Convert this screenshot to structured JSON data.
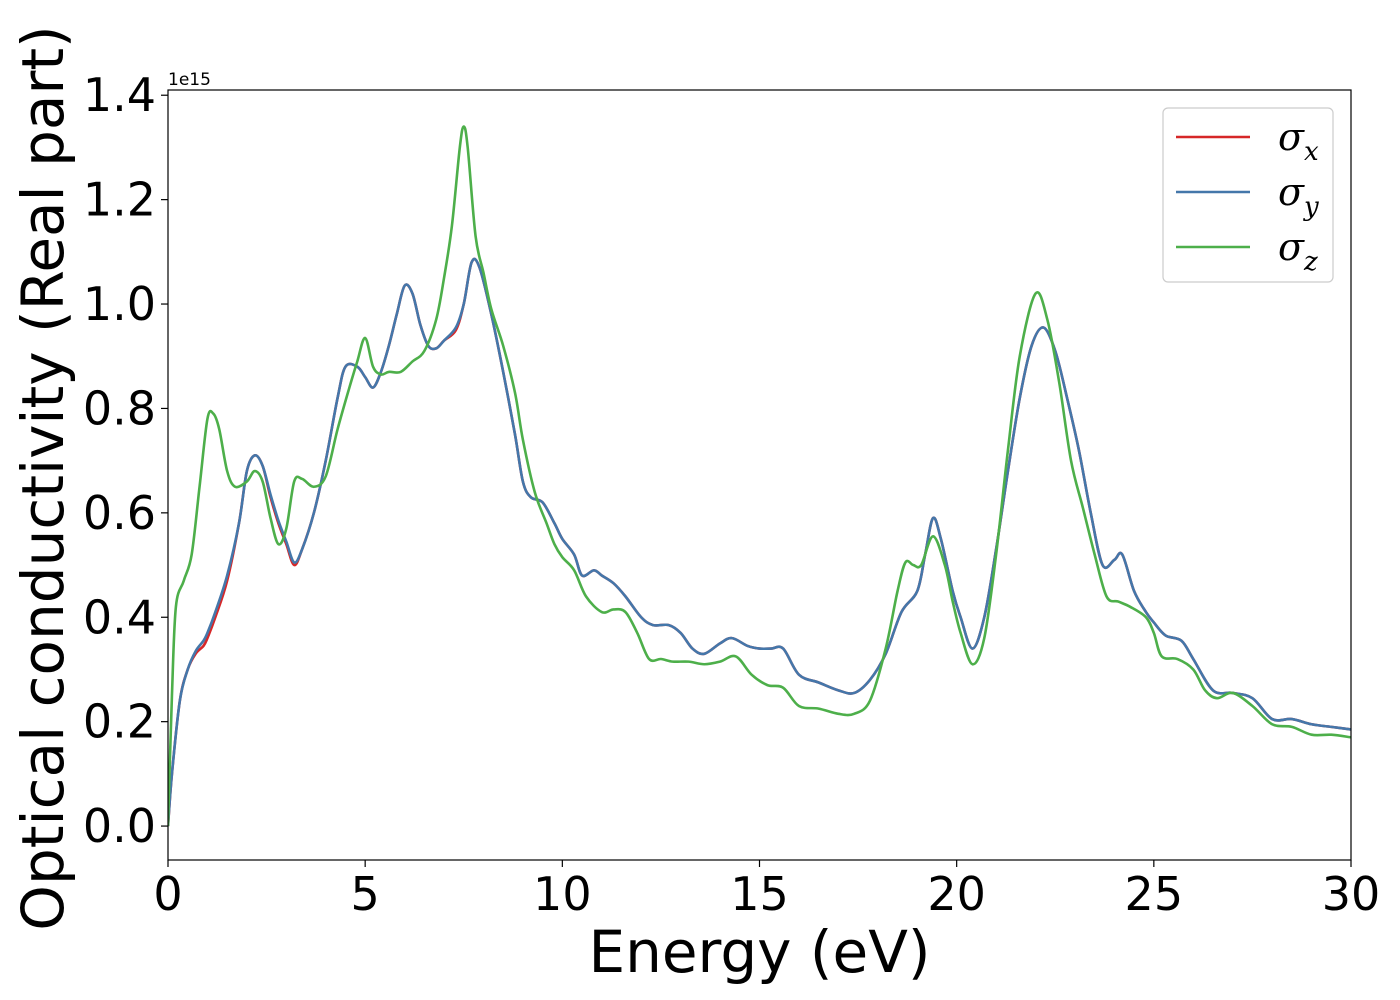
{
  "chart_data": {
    "type": "line",
    "title": "",
    "xlabel": "Energy (eV)",
    "ylabel": "Optical conductivity (Real part)",
    "y_offset_label": "1e15",
    "xlim": [
      0,
      30
    ],
    "ylim": [
      -0.065,
      1.41
    ],
    "x_ticks": [
      0,
      5,
      10,
      15,
      20,
      25,
      30
    ],
    "y_ticks": [
      0.0,
      0.2,
      0.4,
      0.6,
      0.8,
      1.0,
      1.2,
      1.4
    ],
    "y_tick_labels": [
      "0.0",
      "0.2",
      "0.4",
      "0.6",
      "0.8",
      "1.0",
      "1.2",
      "1.4"
    ],
    "grid": false,
    "legend_position": "top-right",
    "series": [
      {
        "name": "σx",
        "symbol": "σ",
        "sub": "x",
        "color": "#d62728",
        "points": [
          [
            0,
            0
          ],
          [
            0.1,
            0.1
          ],
          [
            0.3,
            0.24
          ],
          [
            0.5,
            0.3
          ],
          [
            0.7,
            0.33
          ],
          [
            0.9,
            0.345
          ],
          [
            1.0,
            0.36
          ],
          [
            1.2,
            0.4
          ],
          [
            1.5,
            0.47
          ],
          [
            1.8,
            0.58
          ],
          [
            2.0,
            0.68
          ],
          [
            2.2,
            0.71
          ],
          [
            2.4,
            0.69
          ],
          [
            2.6,
            0.63
          ],
          [
            2.8,
            0.58
          ],
          [
            3.0,
            0.54
          ],
          [
            3.2,
            0.5
          ],
          [
            3.4,
            0.53
          ],
          [
            3.7,
            0.6
          ],
          [
            4.0,
            0.7
          ],
          [
            4.3,
            0.82
          ],
          [
            4.5,
            0.88
          ],
          [
            4.8,
            0.88
          ],
          [
            5.0,
            0.86
          ],
          [
            5.2,
            0.84
          ],
          [
            5.4,
            0.87
          ],
          [
            5.6,
            0.92
          ],
          [
            5.8,
            0.98
          ],
          [
            6.0,
            1.035
          ],
          [
            6.2,
            1.02
          ],
          [
            6.4,
            0.96
          ],
          [
            6.6,
            0.92
          ],
          [
            6.8,
            0.915
          ],
          [
            7.0,
            0.93
          ],
          [
            7.3,
            0.95
          ],
          [
            7.5,
            1.0
          ],
          [
            7.7,
            1.08
          ],
          [
            7.9,
            1.07
          ],
          [
            8.2,
            0.98
          ],
          [
            8.5,
            0.87
          ],
          [
            8.8,
            0.75
          ],
          [
            9.0,
            0.66
          ],
          [
            9.2,
            0.63
          ],
          [
            9.5,
            0.62
          ],
          [
            9.8,
            0.58
          ],
          [
            10.0,
            0.55
          ],
          [
            10.3,
            0.52
          ],
          [
            10.5,
            0.48
          ],
          [
            10.8,
            0.49
          ],
          [
            11.0,
            0.48
          ],
          [
            11.3,
            0.465
          ],
          [
            11.6,
            0.44
          ],
          [
            12.0,
            0.4
          ],
          [
            12.3,
            0.385
          ],
          [
            12.7,
            0.385
          ],
          [
            13.0,
            0.37
          ],
          [
            13.3,
            0.34
          ],
          [
            13.6,
            0.33
          ],
          [
            14.0,
            0.35
          ],
          [
            14.3,
            0.36
          ],
          [
            14.7,
            0.345
          ],
          [
            15.0,
            0.34
          ],
          [
            15.3,
            0.34
          ],
          [
            15.6,
            0.34
          ],
          [
            16.0,
            0.29
          ],
          [
            16.5,
            0.275
          ],
          [
            17.0,
            0.26
          ],
          [
            17.4,
            0.255
          ],
          [
            17.8,
            0.28
          ],
          [
            18.2,
            0.33
          ],
          [
            18.6,
            0.41
          ],
          [
            19.0,
            0.45
          ],
          [
            19.2,
            0.52
          ],
          [
            19.4,
            0.59
          ],
          [
            19.6,
            0.55
          ],
          [
            19.9,
            0.45
          ],
          [
            20.1,
            0.4
          ],
          [
            20.4,
            0.34
          ],
          [
            20.7,
            0.4
          ],
          [
            21.0,
            0.53
          ],
          [
            21.3,
            0.68
          ],
          [
            21.6,
            0.82
          ],
          [
            21.9,
            0.92
          ],
          [
            22.2,
            0.955
          ],
          [
            22.5,
            0.91
          ],
          [
            22.8,
            0.82
          ],
          [
            23.1,
            0.72
          ],
          [
            23.4,
            0.6
          ],
          [
            23.7,
            0.5
          ],
          [
            24.0,
            0.51
          ],
          [
            24.2,
            0.52
          ],
          [
            24.5,
            0.45
          ],
          [
            24.8,
            0.41
          ],
          [
            25.0,
            0.39
          ],
          [
            25.3,
            0.365
          ],
          [
            25.7,
            0.355
          ],
          [
            26.0,
            0.32
          ],
          [
            26.5,
            0.26
          ],
          [
            27.0,
            0.255
          ],
          [
            27.5,
            0.245
          ],
          [
            28.0,
            0.205
          ],
          [
            28.5,
            0.205
          ],
          [
            29.0,
            0.195
          ],
          [
            29.5,
            0.19
          ],
          [
            30.0,
            0.185
          ]
        ]
      },
      {
        "name": "σy",
        "symbol": "σ",
        "sub": "y",
        "color": "#4477aa",
        "points": [
          [
            0,
            0
          ],
          [
            0.1,
            0.1
          ],
          [
            0.3,
            0.24
          ],
          [
            0.5,
            0.3
          ],
          [
            0.7,
            0.335
          ],
          [
            0.9,
            0.355
          ],
          [
            1.0,
            0.37
          ],
          [
            1.2,
            0.41
          ],
          [
            1.5,
            0.48
          ],
          [
            1.8,
            0.58
          ],
          [
            2.0,
            0.68
          ],
          [
            2.2,
            0.71
          ],
          [
            2.4,
            0.69
          ],
          [
            2.6,
            0.635
          ],
          [
            2.8,
            0.585
          ],
          [
            3.0,
            0.545
          ],
          [
            3.2,
            0.505
          ],
          [
            3.4,
            0.53
          ],
          [
            3.7,
            0.6
          ],
          [
            4.0,
            0.7
          ],
          [
            4.3,
            0.82
          ],
          [
            4.5,
            0.88
          ],
          [
            4.8,
            0.88
          ],
          [
            5.0,
            0.86
          ],
          [
            5.2,
            0.84
          ],
          [
            5.4,
            0.87
          ],
          [
            5.6,
            0.92
          ],
          [
            5.8,
            0.98
          ],
          [
            6.0,
            1.035
          ],
          [
            6.2,
            1.02
          ],
          [
            6.4,
            0.96
          ],
          [
            6.6,
            0.92
          ],
          [
            6.8,
            0.915
          ],
          [
            7.0,
            0.93
          ],
          [
            7.3,
            0.955
          ],
          [
            7.5,
            1.0
          ],
          [
            7.7,
            1.08
          ],
          [
            7.9,
            1.07
          ],
          [
            8.2,
            0.98
          ],
          [
            8.5,
            0.87
          ],
          [
            8.8,
            0.75
          ],
          [
            9.0,
            0.66
          ],
          [
            9.2,
            0.63
          ],
          [
            9.5,
            0.62
          ],
          [
            9.8,
            0.58
          ],
          [
            10.0,
            0.55
          ],
          [
            10.3,
            0.52
          ],
          [
            10.5,
            0.48
          ],
          [
            10.8,
            0.49
          ],
          [
            11.0,
            0.48
          ],
          [
            11.3,
            0.465
          ],
          [
            11.6,
            0.44
          ],
          [
            12.0,
            0.4
          ],
          [
            12.3,
            0.385
          ],
          [
            12.7,
            0.385
          ],
          [
            13.0,
            0.37
          ],
          [
            13.3,
            0.34
          ],
          [
            13.6,
            0.33
          ],
          [
            14.0,
            0.35
          ],
          [
            14.3,
            0.36
          ],
          [
            14.7,
            0.345
          ],
          [
            15.0,
            0.34
          ],
          [
            15.3,
            0.34
          ],
          [
            15.6,
            0.34
          ],
          [
            16.0,
            0.29
          ],
          [
            16.5,
            0.275
          ],
          [
            17.0,
            0.26
          ],
          [
            17.4,
            0.255
          ],
          [
            17.8,
            0.28
          ],
          [
            18.2,
            0.33
          ],
          [
            18.6,
            0.41
          ],
          [
            19.0,
            0.45
          ],
          [
            19.2,
            0.52
          ],
          [
            19.4,
            0.59
          ],
          [
            19.6,
            0.55
          ],
          [
            19.9,
            0.45
          ],
          [
            20.1,
            0.4
          ],
          [
            20.4,
            0.34
          ],
          [
            20.7,
            0.4
          ],
          [
            21.0,
            0.53
          ],
          [
            21.3,
            0.68
          ],
          [
            21.6,
            0.82
          ],
          [
            21.9,
            0.92
          ],
          [
            22.2,
            0.955
          ],
          [
            22.5,
            0.91
          ],
          [
            22.8,
            0.82
          ],
          [
            23.1,
            0.72
          ],
          [
            23.4,
            0.6
          ],
          [
            23.7,
            0.5
          ],
          [
            24.0,
            0.51
          ],
          [
            24.2,
            0.52
          ],
          [
            24.5,
            0.45
          ],
          [
            24.8,
            0.41
          ],
          [
            25.0,
            0.39
          ],
          [
            25.3,
            0.365
          ],
          [
            25.7,
            0.355
          ],
          [
            26.0,
            0.32
          ],
          [
            26.5,
            0.26
          ],
          [
            27.0,
            0.255
          ],
          [
            27.5,
            0.245
          ],
          [
            28.0,
            0.205
          ],
          [
            28.5,
            0.205
          ],
          [
            29.0,
            0.195
          ],
          [
            29.5,
            0.19
          ],
          [
            30.0,
            0.185
          ]
        ]
      },
      {
        "name": "σz",
        "symbol": "σ",
        "sub": "z",
        "color": "#4daf4a",
        "points": [
          [
            0,
            0
          ],
          [
            0.1,
            0.25
          ],
          [
            0.2,
            0.42
          ],
          [
            0.4,
            0.47
          ],
          [
            0.6,
            0.52
          ],
          [
            0.8,
            0.65
          ],
          [
            1.0,
            0.78
          ],
          [
            1.15,
            0.79
          ],
          [
            1.3,
            0.76
          ],
          [
            1.5,
            0.68
          ],
          [
            1.7,
            0.65
          ],
          [
            2.0,
            0.66
          ],
          [
            2.2,
            0.68
          ],
          [
            2.4,
            0.66
          ],
          [
            2.6,
            0.59
          ],
          [
            2.8,
            0.54
          ],
          [
            3.0,
            0.57
          ],
          [
            3.2,
            0.66
          ],
          [
            3.4,
            0.665
          ],
          [
            3.7,
            0.65
          ],
          [
            4.0,
            0.67
          ],
          [
            4.3,
            0.76
          ],
          [
            4.6,
            0.84
          ],
          [
            4.8,
            0.89
          ],
          [
            5.0,
            0.935
          ],
          [
            5.2,
            0.88
          ],
          [
            5.4,
            0.865
          ],
          [
            5.6,
            0.87
          ],
          [
            5.9,
            0.87
          ],
          [
            6.2,
            0.89
          ],
          [
            6.5,
            0.91
          ],
          [
            6.8,
            0.97
          ],
          [
            7.0,
            1.05
          ],
          [
            7.2,
            1.15
          ],
          [
            7.4,
            1.3
          ],
          [
            7.5,
            1.34
          ],
          [
            7.6,
            1.3
          ],
          [
            7.8,
            1.13
          ],
          [
            8.0,
            1.06
          ],
          [
            8.2,
            0.99
          ],
          [
            8.5,
            0.92
          ],
          [
            8.8,
            0.83
          ],
          [
            9.0,
            0.74
          ],
          [
            9.3,
            0.64
          ],
          [
            9.6,
            0.58
          ],
          [
            9.8,
            0.54
          ],
          [
            10.0,
            0.515
          ],
          [
            10.3,
            0.49
          ],
          [
            10.6,
            0.44
          ],
          [
            11.0,
            0.41
          ],
          [
            11.3,
            0.415
          ],
          [
            11.6,
            0.41
          ],
          [
            11.9,
            0.37
          ],
          [
            12.2,
            0.32
          ],
          [
            12.5,
            0.32
          ],
          [
            12.8,
            0.315
          ],
          [
            13.2,
            0.315
          ],
          [
            13.6,
            0.31
          ],
          [
            14.0,
            0.315
          ],
          [
            14.4,
            0.325
          ],
          [
            14.8,
            0.29
          ],
          [
            15.2,
            0.27
          ],
          [
            15.6,
            0.265
          ],
          [
            16.0,
            0.23
          ],
          [
            16.5,
            0.225
          ],
          [
            17.0,
            0.215
          ],
          [
            17.4,
            0.215
          ],
          [
            17.8,
            0.24
          ],
          [
            18.2,
            0.34
          ],
          [
            18.5,
            0.45
          ],
          [
            18.7,
            0.505
          ],
          [
            18.9,
            0.5
          ],
          [
            19.1,
            0.5
          ],
          [
            19.4,
            0.555
          ],
          [
            19.7,
            0.5
          ],
          [
            19.9,
            0.43
          ],
          [
            20.1,
            0.37
          ],
          [
            20.4,
            0.31
          ],
          [
            20.7,
            0.36
          ],
          [
            21.0,
            0.52
          ],
          [
            21.3,
            0.72
          ],
          [
            21.6,
            0.9
          ],
          [
            22.0,
            1.02
          ],
          [
            22.3,
            0.97
          ],
          [
            22.6,
            0.85
          ],
          [
            22.9,
            0.7
          ],
          [
            23.2,
            0.61
          ],
          [
            23.5,
            0.52
          ],
          [
            23.8,
            0.44
          ],
          [
            24.1,
            0.43
          ],
          [
            24.4,
            0.42
          ],
          [
            24.8,
            0.4
          ],
          [
            25.0,
            0.37
          ],
          [
            25.2,
            0.325
          ],
          [
            25.6,
            0.32
          ],
          [
            26.0,
            0.3
          ],
          [
            26.3,
            0.26
          ],
          [
            26.6,
            0.245
          ],
          [
            27.0,
            0.255
          ],
          [
            27.5,
            0.23
          ],
          [
            28.0,
            0.195
          ],
          [
            28.5,
            0.19
          ],
          [
            29.0,
            0.175
          ],
          [
            29.5,
            0.175
          ],
          [
            30.0,
            0.17
          ]
        ]
      }
    ]
  }
}
